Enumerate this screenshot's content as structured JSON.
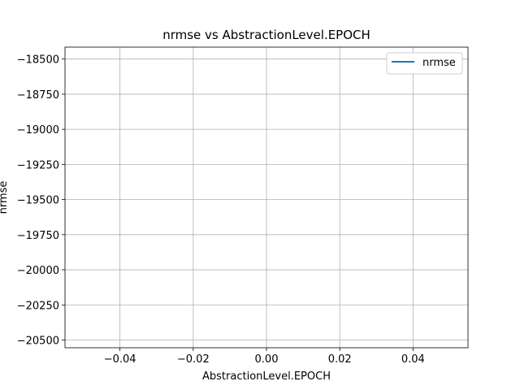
{
  "chart_data": {
    "type": "line",
    "title": "nrmse vs AbstractionLevel.EPOCH",
    "xlabel": "AbstractionLevel.EPOCH",
    "ylabel": "nrmse",
    "xlim": [
      -0.055,
      0.055
    ],
    "ylim": [
      -20555,
      -18415
    ],
    "grid": true,
    "legend_position": "top-right",
    "x_ticks": [
      {
        "value": -0.04,
        "label": "−0.04"
      },
      {
        "value": -0.02,
        "label": "−0.02"
      },
      {
        "value": 0.0,
        "label": "0.00"
      },
      {
        "value": 0.02,
        "label": "0.02"
      },
      {
        "value": 0.04,
        "label": "0.04"
      }
    ],
    "y_ticks": [
      {
        "value": -18500,
        "label": "−18500"
      },
      {
        "value": -18750,
        "label": "−18750"
      },
      {
        "value": -19000,
        "label": "−19000"
      },
      {
        "value": -19250,
        "label": "−19250"
      },
      {
        "value": -19500,
        "label": "−19500"
      },
      {
        "value": -19750,
        "label": "−19750"
      },
      {
        "value": -20000,
        "label": "−20000"
      },
      {
        "value": -20250,
        "label": "−20250"
      },
      {
        "value": -20500,
        "label": "−20500"
      }
    ],
    "series": [
      {
        "name": "nrmse",
        "color": "#1f77b4",
        "x": [],
        "y": []
      }
    ]
  }
}
